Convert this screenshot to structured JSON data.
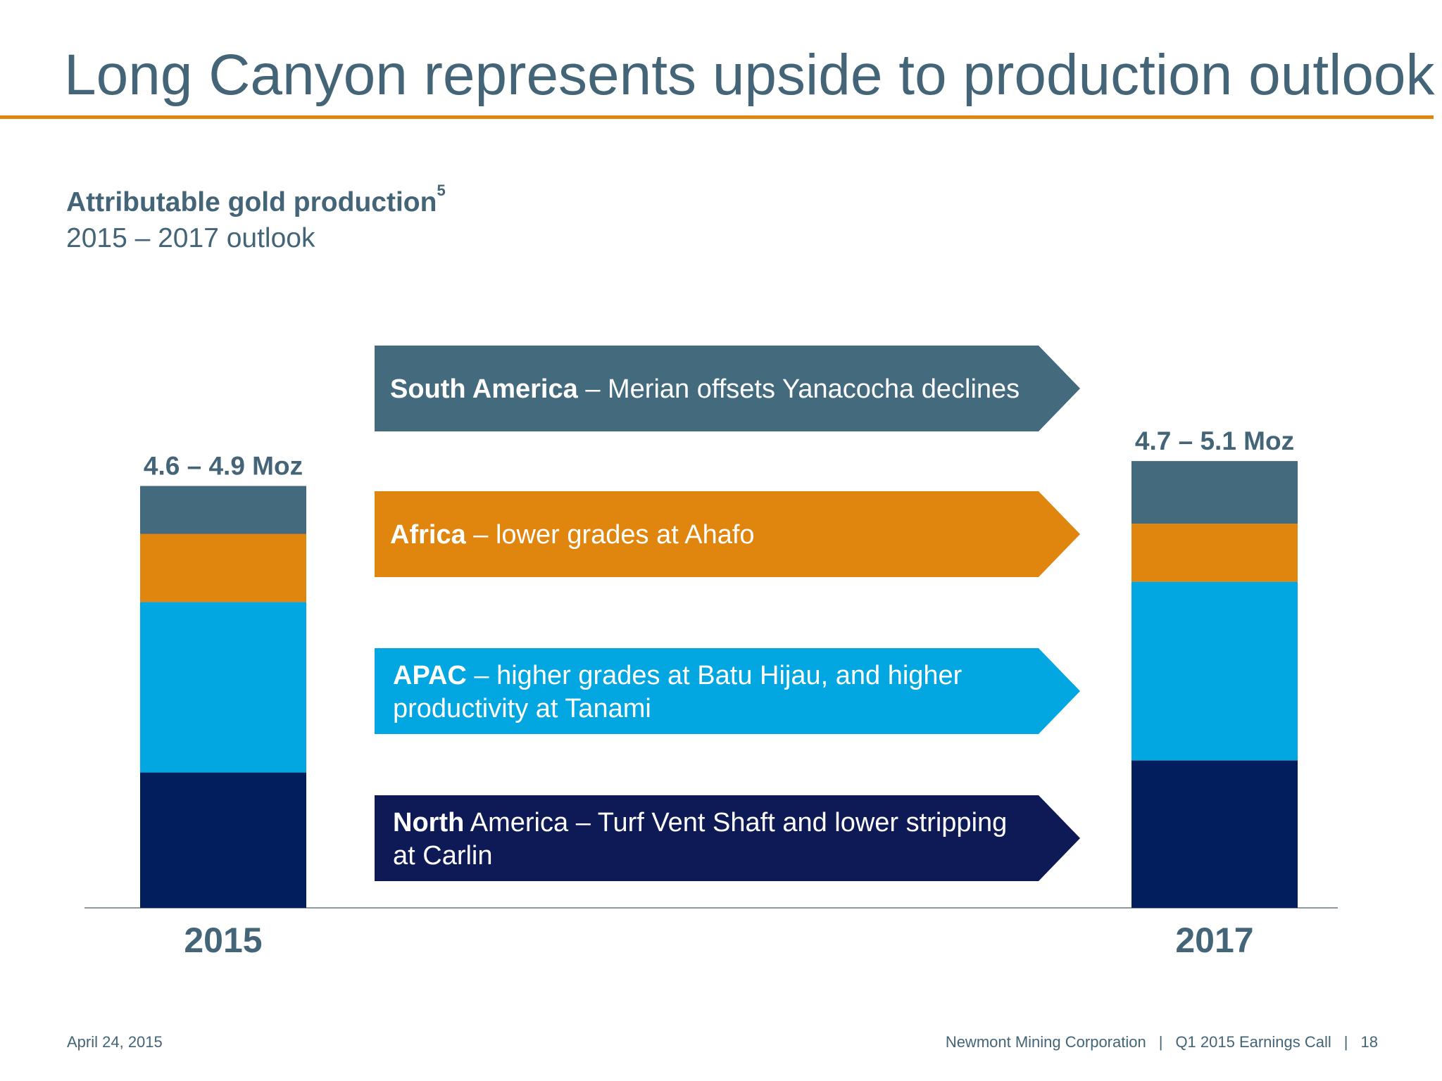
{
  "slide": {
    "title": "Long Canyon represents upside to production outlook"
  },
  "chart_header": {
    "title": "Attributable gold production",
    "footnote": "5",
    "period": "2015 – 2017 outlook"
  },
  "chart_data": {
    "type": "bar",
    "stacked": true,
    "categories": [
      "2015",
      "2017"
    ],
    "totals": [
      "4.6 – 4.9 Moz",
      "4.7 – 5.1 Moz"
    ],
    "series": [
      {
        "name": "North America",
        "values": [
          1.47,
          1.6
        ],
        "color": "#031e5d"
      },
      {
        "name": "APAC",
        "values": [
          1.85,
          1.94
        ],
        "color": "#02a6e1"
      },
      {
        "name": "Africa",
        "values": [
          0.74,
          0.63
        ],
        "color": "#e0850e"
      },
      {
        "name": "South America",
        "values": [
          0.52,
          0.68
        ],
        "color": "#446a7e"
      }
    ],
    "legend": "center",
    "grid": false
  },
  "callouts": [
    {
      "bold": "South America",
      "text": " – Merian offsets Yanacocha declines",
      "color": "#446a7e"
    },
    {
      "bold": "Africa",
      "text": " – lower grades at Ahafo",
      "color": "#e0850e"
    },
    {
      "bold": "APAC",
      "text": " – higher grades at Batu Hijau, and higher productivity at Tanami",
      "color": "#02a6e1"
    },
    {
      "bold": "North",
      "text": " America – Turf Vent Shaft and lower stripping at Carlin",
      "color": "#0e1a56"
    }
  ],
  "footer": {
    "date": "April 24, 2015",
    "company": "Newmont Mining Corporation",
    "event": "Q1 2015 Earnings Call",
    "page": "18",
    "separator": "|"
  }
}
